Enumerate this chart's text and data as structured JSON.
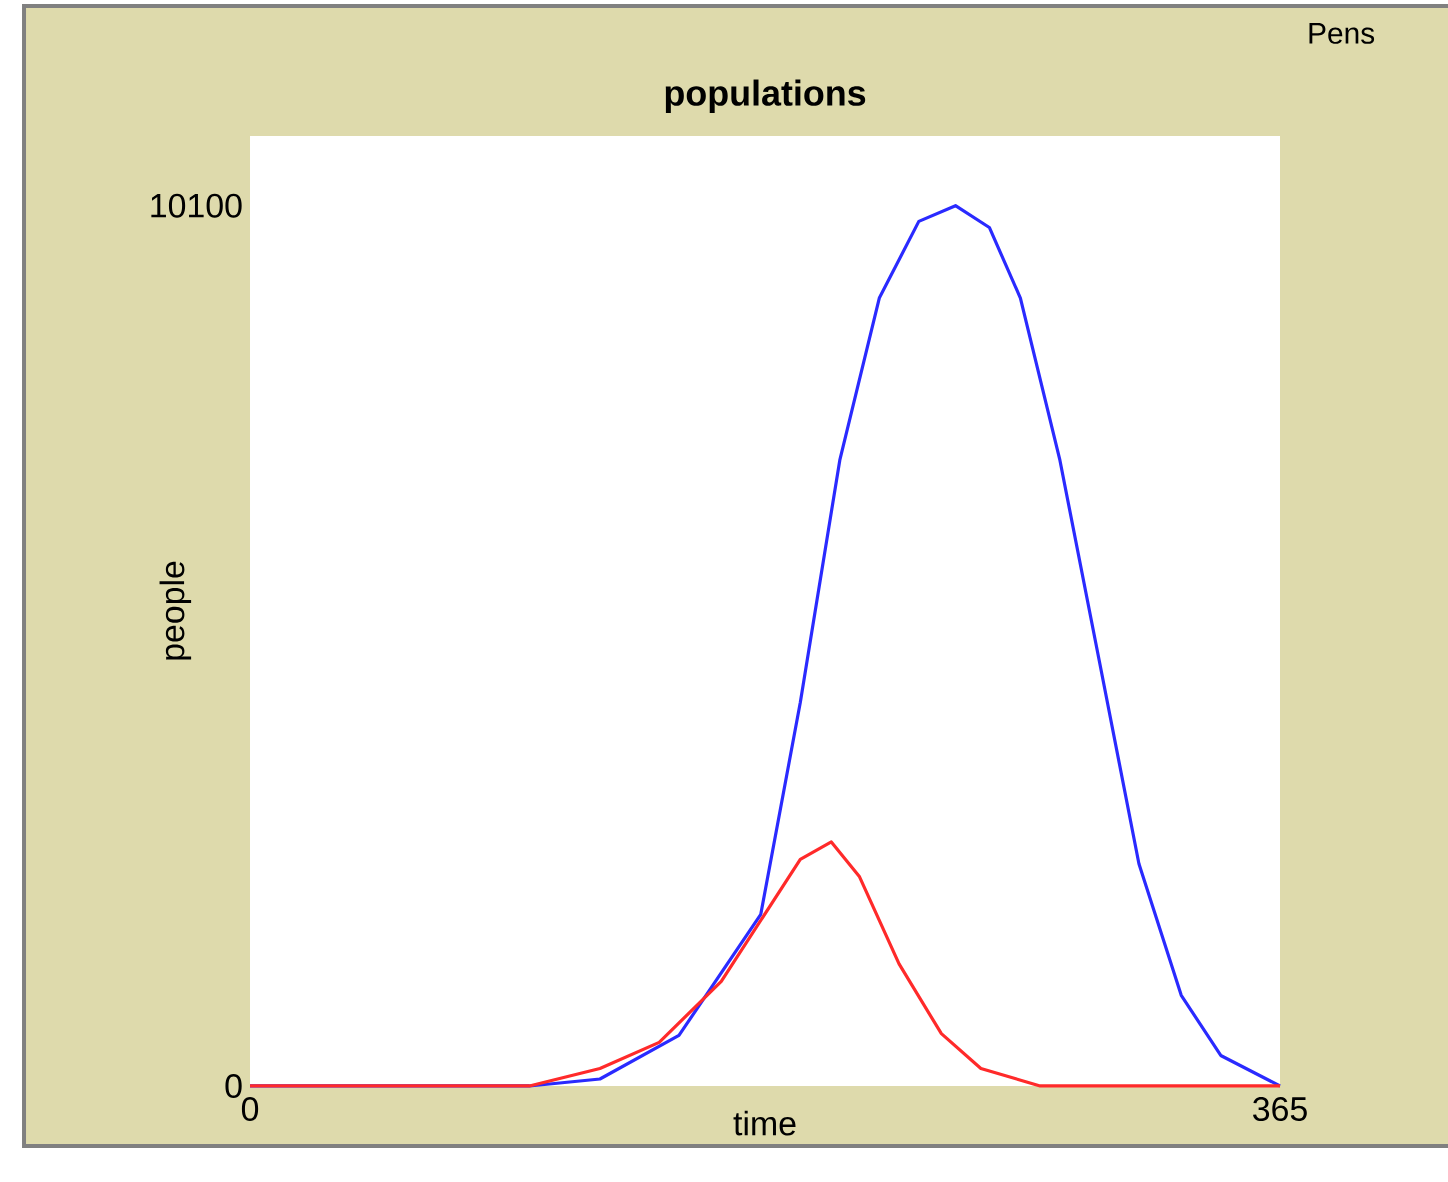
{
  "chart_data": {
    "type": "line",
    "title": "populations",
    "xlabel": "time",
    "ylabel": "people",
    "annotations": [
      "Pens"
    ],
    "xlim": [
      0,
      365
    ],
    "ylim": [
      0,
      10900
    ],
    "xticks": [
      0,
      365
    ],
    "yticks": [
      0,
      10100
    ],
    "grid": false,
    "marker": "none",
    "line_style": "solid",
    "series": [
      {
        "color": "#2a2aff",
        "x": [
          0,
          99,
          124,
          152,
          181,
          195,
          209,
          223,
          237,
          250,
          262,
          273,
          287,
          301,
          315,
          330,
          344,
          365
        ],
        "values": [
          0,
          0,
          80,
          580,
          1970,
          4400,
          7180,
          9040,
          9920,
          10100,
          9850,
          9040,
          7180,
          4870,
          2550,
          1040,
          350,
          0
        ]
      },
      {
        "color": "#ff2a2a",
        "x": [
          0,
          99,
          124,
          145,
          167,
          181,
          195,
          206,
          216,
          230,
          245,
          259,
          280,
          365
        ],
        "values": [
          0,
          0,
          200,
          500,
          1200,
          1900,
          2600,
          2800,
          2400,
          1400,
          600,
          200,
          0,
          0
        ]
      }
    ]
  }
}
